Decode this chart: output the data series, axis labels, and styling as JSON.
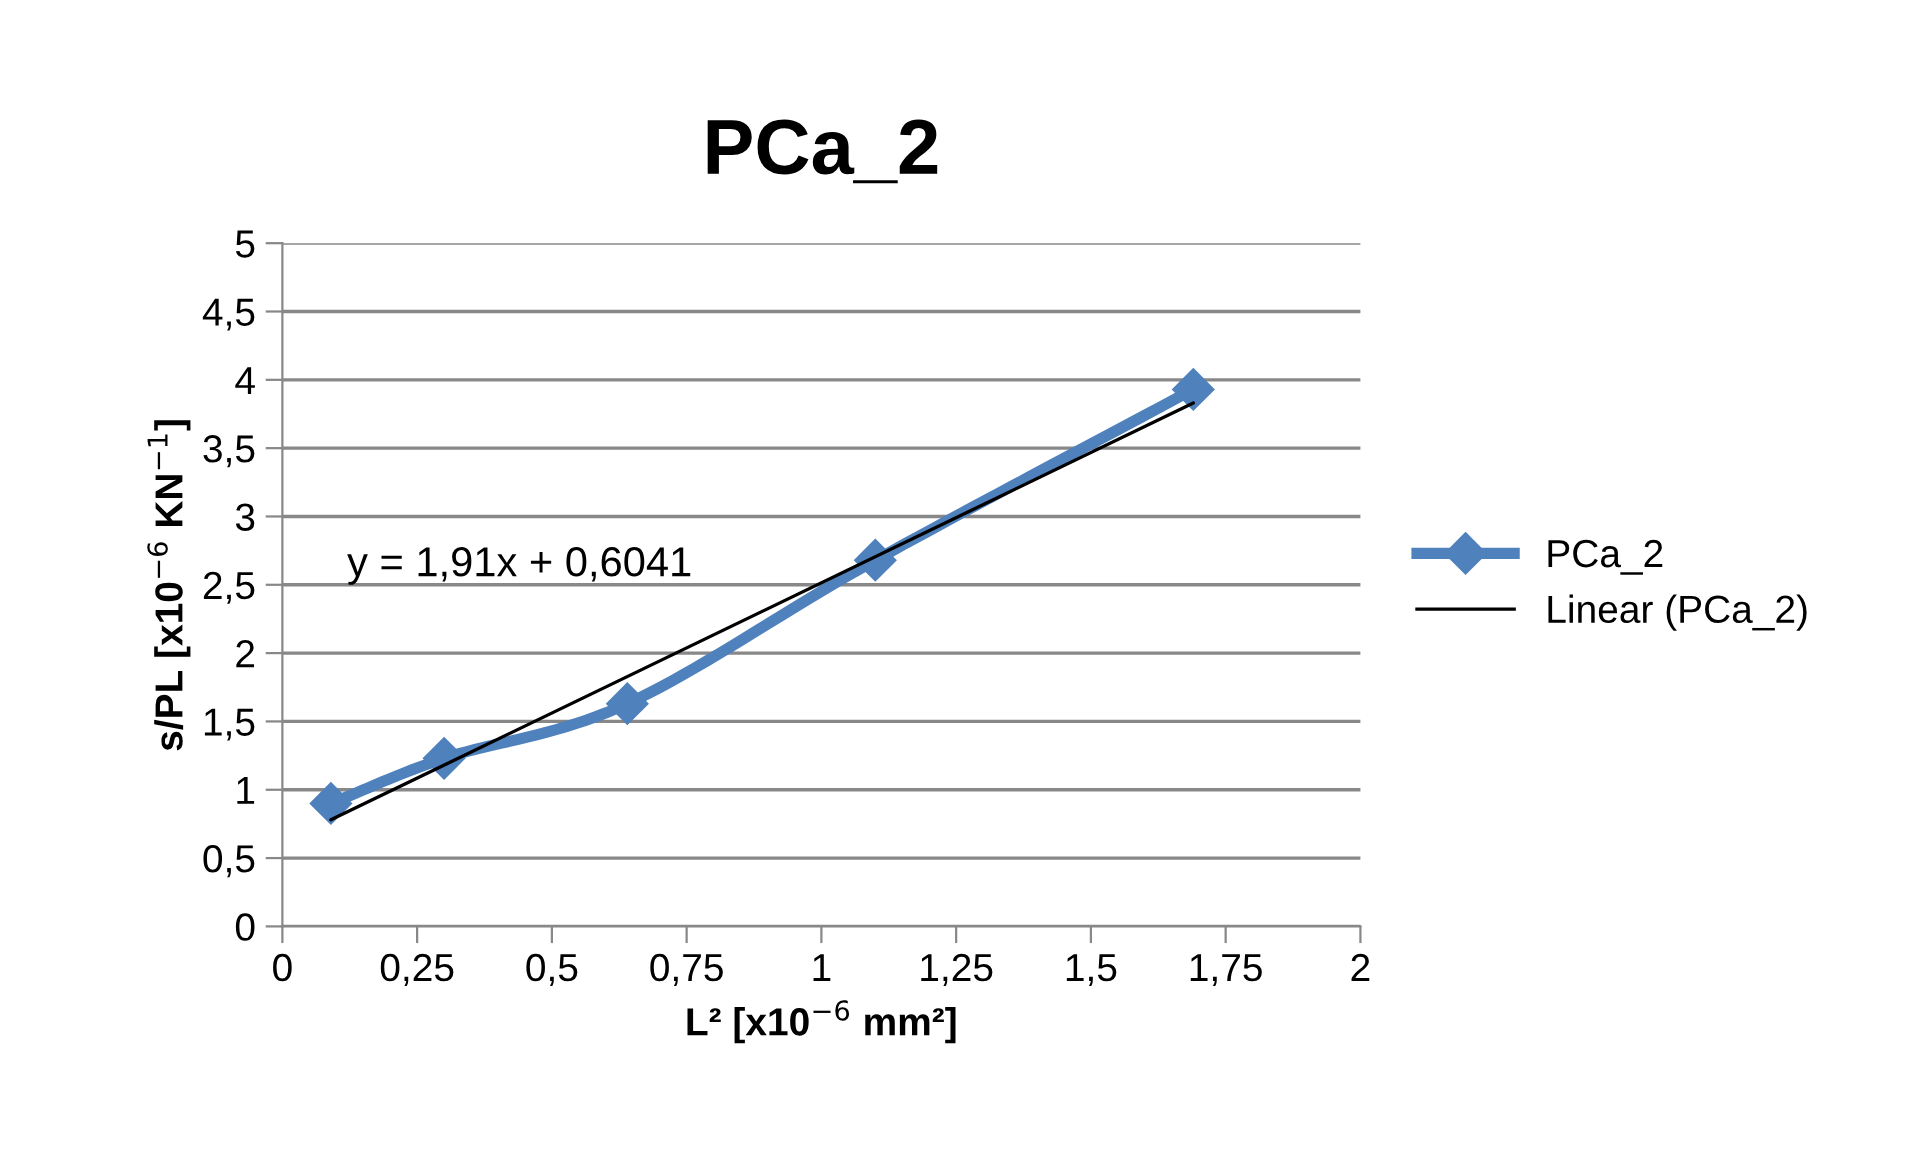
{
  "chart_data": {
    "type": "line",
    "title": "PCa_2",
    "xlabel": "L² [x10$^{−6}$ mm²]",
    "ylabel": "s/PL [x10$^{−6}$ KN$^{−1}$]",
    "x": [
      0.09,
      0.3,
      0.64,
      1.1,
      1.69
    ],
    "series": [
      {
        "name": "PCa_2",
        "color": "#4f81bd",
        "values": [
          0.9,
          1.23,
          1.63,
          2.68,
          3.93
        ],
        "marker": "diamond"
      },
      {
        "name": "Linear (PCa_2)",
        "color": "#000000",
        "type": "line",
        "x": [
          0.09,
          1.69
        ],
        "values": [
          0.78,
          3.83
        ],
        "marker": "none"
      }
    ],
    "annotations": [
      "y = 1,91x + 0,6041"
    ],
    "xlim": [
      0,
      2
    ],
    "ylim": [
      0,
      5
    ],
    "xticks": [
      0,
      {
        "value": 0.25,
        "label": "0,25"
      },
      {
        "value": 0.5,
        "label": "0,5"
      },
      {
        "value": 0.75,
        "label": "0,75"
      },
      1,
      {
        "value": 1.25,
        "label": "1,25"
      },
      {
        "value": 1.5,
        "label": "1,5"
      },
      {
        "value": 1.75,
        "label": "1,75"
      },
      2
    ],
    "yticks": [
      0,
      {
        "value": 0.5,
        "label": "0,5"
      },
      1,
      {
        "value": 1.5,
        "label": "1,5"
      },
      2,
      {
        "value": 2.5,
        "label": "2,5"
      },
      3,
      {
        "value": 3.5,
        "label": "3,5"
      },
      4,
      {
        "value": 4.5,
        "label": "4,5"
      },
      5
    ],
    "grid": "y",
    "legend": "right"
  }
}
